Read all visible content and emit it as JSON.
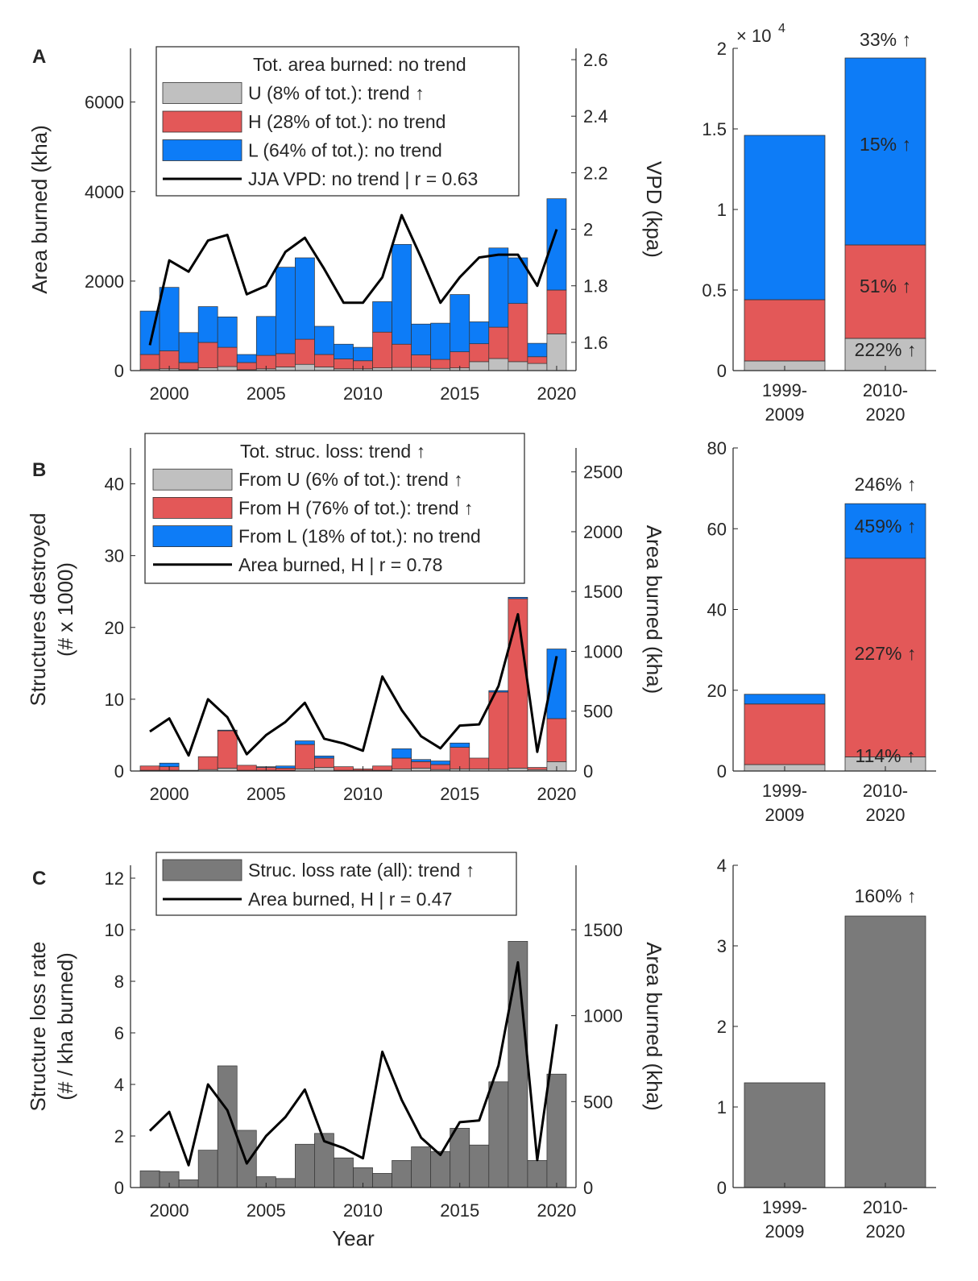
{
  "colors": {
    "U": "#c0c0c0",
    "H": "#e35858",
    "L": "#0d7cf7",
    "gray": "#7a7a7a",
    "axis": "#262626",
    "line": "#000000"
  },
  "chart_data": [
    {
      "panel": "A",
      "type": "bar",
      "stacked": true,
      "ylabel": "Area burned (kha)",
      "y2label": "VPD (kpa)",
      "x": [
        1999,
        2000,
        2001,
        2002,
        2003,
        2004,
        2005,
        2006,
        2007,
        2008,
        2009,
        2010,
        2011,
        2012,
        2013,
        2014,
        2015,
        2016,
        2017,
        2018,
        2019,
        2020
      ],
      "xticks": [
        "2000",
        "2005",
        "2010",
        "2015",
        "2020"
      ],
      "ylim": [
        0,
        7200
      ],
      "yticks": [
        "0",
        "2000",
        "4000",
        "6000"
      ],
      "y2lim": [
        1.5,
        2.64
      ],
      "y2ticks": [
        "1.6",
        "1.8",
        "2",
        "2.2",
        "2.4",
        "2.6"
      ],
      "legend": [
        "Tot. area burned: no trend",
        "U (8% of tot.): trend ↑",
        "H (28% of tot.): no trend",
        "L (64% of tot.): no trend",
        "JJA VPD: no trend | r = 0.63"
      ],
      "series": [
        {
          "name": "U",
          "values": [
            30,
            40,
            20,
            60,
            90,
            20,
            40,
            80,
            140,
            80,
            40,
            40,
            60,
            70,
            70,
            50,
            60,
            200,
            270,
            200,
            160,
            820
          ]
        },
        {
          "name": "H",
          "values": [
            330,
            400,
            160,
            570,
            430,
            160,
            300,
            300,
            560,
            280,
            220,
            180,
            800,
            520,
            280,
            200,
            360,
            400,
            700,
            1300,
            150,
            980
          ]
        },
        {
          "name": "L",
          "values": [
            970,
            1420,
            670,
            800,
            680,
            180,
            870,
            1930,
            1820,
            630,
            330,
            300,
            680,
            2230,
            690,
            810,
            1280,
            490,
            1770,
            1020,
            300,
            2040
          ]
        },
        {
          "name": "JJA VPD",
          "values": [
            1.59,
            1.89,
            1.85,
            1.96,
            1.98,
            1.77,
            1.8,
            1.92,
            1.97,
            1.86,
            1.74,
            1.74,
            1.83,
            2.05,
            1.9,
            1.74,
            1.83,
            1.9,
            1.91,
            1.91,
            1.8,
            2.0
          ]
        }
      ],
      "side": {
        "categories": [
          "1999-2009",
          "2010-2020"
        ],
        "ylim": [
          0,
          20000
        ],
        "yticks": [
          "0",
          "0.5",
          "1",
          "1.5",
          "2"
        ],
        "exponent": "× 10",
        "exponent_power": "4",
        "series": [
          {
            "name": "U",
            "values": [
              600,
              2000
            ]
          },
          {
            "name": "H",
            "values": [
              3800,
              5800
            ]
          },
          {
            "name": "L",
            "values": [
              10200,
              11600
            ]
          }
        ],
        "labels": [
          "33% ↑",
          "15% ↑",
          "51% ↑",
          "222% ↑"
        ]
      }
    },
    {
      "panel": "B",
      "type": "bar",
      "stacked": true,
      "ylabel": [
        "Structures destroyed",
        "(# x 1000)"
      ],
      "y2label": "Area burned (kha)",
      "x": [
        1999,
        2000,
        2001,
        2002,
        2003,
        2004,
        2005,
        2006,
        2007,
        2008,
        2009,
        2010,
        2011,
        2012,
        2013,
        2014,
        2015,
        2016,
        2017,
        2018,
        2019,
        2020
      ],
      "xticks": [
        "2000",
        "2005",
        "2010",
        "2015",
        "2020"
      ],
      "ylim": [
        0,
        45
      ],
      "yticks": [
        "0",
        "10",
        "20",
        "30",
        "40"
      ],
      "y2lim": [
        0,
        2700
      ],
      "y2ticks": [
        "0",
        "500",
        "1000",
        "1500",
        "2000",
        "2500"
      ],
      "legend": [
        "Tot. struc. loss: trend ↑",
        "From U (6% of tot.): trend ↑",
        "From H (76% of tot.): trend ↑",
        "From L (18% of tot.): no trend",
        "Area burned, H | r = 0.78"
      ],
      "series": [
        {
          "name": "U",
          "values": [
            0.1,
            0.1,
            0.0,
            0.2,
            0.4,
            0.1,
            0.1,
            0.1,
            0.3,
            0.5,
            0.1,
            0.1,
            0.1,
            0.3,
            0.4,
            0.2,
            0.3,
            0.3,
            0.3,
            0.4,
            0.2,
            1.3
          ]
        },
        {
          "name": "H",
          "values": [
            0.6,
            0.5,
            0.1,
            1.8,
            5.2,
            0.7,
            0.4,
            0.3,
            3.4,
            1.3,
            0.5,
            0.2,
            0.6,
            1.5,
            0.9,
            0.7,
            3.0,
            1.5,
            10.7,
            23.6,
            0.3,
            6.0
          ]
        },
        {
          "name": "L",
          "values": [
            0.0,
            0.5,
            0.0,
            0.0,
            0.1,
            0.0,
            0.1,
            0.3,
            0.5,
            0.3,
            0.0,
            0.0,
            0.0,
            1.3,
            0.3,
            0.5,
            0.6,
            0.0,
            0.2,
            0.2,
            0.0,
            9.7
          ]
        },
        {
          "name": "Area burned, H",
          "values": [
            330,
            440,
            130,
            600,
            450,
            140,
            300,
            410,
            570,
            270,
            230,
            170,
            790,
            510,
            290,
            190,
            380,
            390,
            710,
            1310,
            160,
            960
          ]
        }
      ],
      "side": {
        "categories": [
          "1999-2009",
          "2010-2020"
        ],
        "ylim": [
          0,
          80
        ],
        "yticks": [
          "0",
          "20",
          "40",
          "60",
          "80"
        ],
        "series": [
          {
            "name": "U",
            "values": [
              1.6,
              3.5
            ]
          },
          {
            "name": "H",
            "values": [
              15.0,
              49.2
            ]
          },
          {
            "name": "L",
            "values": [
              2.4,
              13.5
            ]
          }
        ],
        "labels": [
          "246% ↑",
          "459% ↑",
          "227% ↑",
          "114% ↑"
        ]
      }
    },
    {
      "panel": "C",
      "type": "bar",
      "xlabel": "Year",
      "ylabel": [
        "Structure loss rate",
        "(# / kha burned)"
      ],
      "y2label": "Area burned (kha)",
      "x": [
        1999,
        2000,
        2001,
        2002,
        2003,
        2004,
        2005,
        2006,
        2007,
        2008,
        2009,
        2010,
        2011,
        2012,
        2013,
        2014,
        2015,
        2016,
        2017,
        2018,
        2019,
        2020
      ],
      "xticks": [
        "2000",
        "2005",
        "2010",
        "2015",
        "2020"
      ],
      "ylim": [
        0,
        12.5
      ],
      "yticks": [
        "0",
        "2",
        "4",
        "6",
        "8",
        "10",
        "12"
      ],
      "y2lim": [
        0,
        1875
      ],
      "y2ticks": [
        "0",
        "500",
        "1000",
        "1500"
      ],
      "legend": [
        "Struc. loss rate (all): trend ↑",
        "Area burned, H | r = 0.47"
      ],
      "series": [
        {
          "name": "Struc. loss rate (all)",
          "values": [
            0.65,
            0.62,
            0.3,
            1.45,
            4.72,
            2.22,
            0.42,
            0.35,
            1.68,
            2.1,
            1.15,
            0.77,
            0.55,
            1.05,
            1.58,
            1.4,
            2.3,
            1.65,
            4.1,
            9.55,
            1.05,
            4.4
          ]
        },
        {
          "name": "Area burned, H",
          "values": [
            330,
            440,
            130,
            600,
            450,
            140,
            300,
            410,
            570,
            270,
            230,
            170,
            790,
            510,
            290,
            190,
            380,
            390,
            710,
            1310,
            160,
            950
          ]
        }
      ],
      "side": {
        "categories": [
          "1999-2009",
          "2010-2020"
        ],
        "ylim": [
          0,
          4
        ],
        "yticks": [
          "0",
          "1",
          "2",
          "3",
          "4"
        ],
        "series": [
          {
            "name": "Struc. loss rate (all)",
            "values": [
              1.3,
              3.37
            ]
          }
        ],
        "labels": [
          "160% ↑"
        ]
      }
    }
  ]
}
